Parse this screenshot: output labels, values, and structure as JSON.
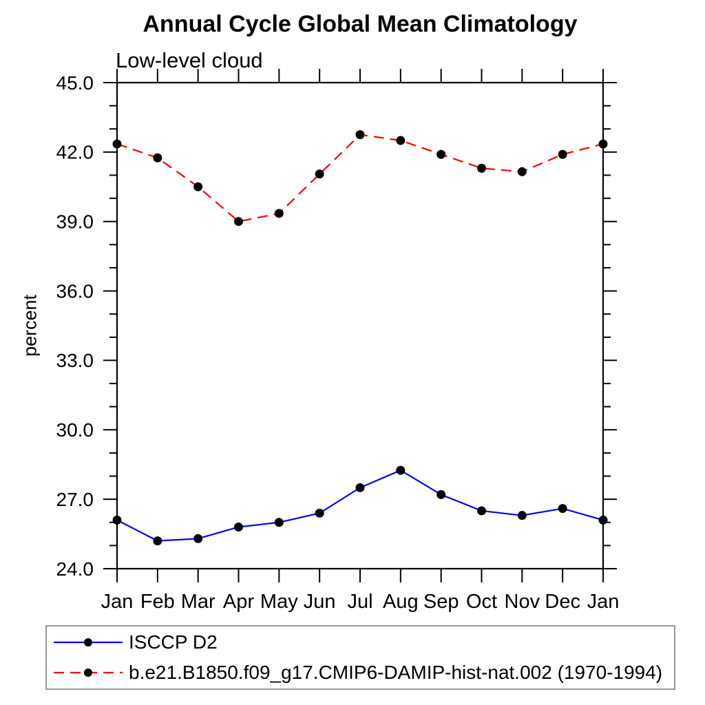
{
  "page": {
    "background": "#ffffff"
  },
  "header": {
    "title": "Annual Cycle Global Mean Climatology",
    "subtitle": "Low-level cloud"
  },
  "chart_data": {
    "type": "line",
    "title": "Annual Cycle Global Mean Climatology",
    "subtitle": "Low-level cloud",
    "xlabel": "",
    "ylabel": "percent",
    "x_categories": [
      "Jan",
      "Feb",
      "Mar",
      "Apr",
      "May",
      "Jun",
      "Jul",
      "Aug",
      "Sep",
      "Oct",
      "Nov",
      "Dec",
      "Jan"
    ],
    "ylim": [
      24.0,
      45.0
    ],
    "y_major_tick_labels": [
      "24.0",
      "27.0",
      "30.0",
      "33.0",
      "36.0",
      "39.0",
      "42.0",
      "45.0"
    ],
    "y_major_tick_step": 3.0,
    "y_minor_tick_step": 1.0,
    "grid": false,
    "frame": "box-with-outward-ticks",
    "legend_position": "bottom-left-box",
    "axis_color": "#000000",
    "marker_radius_px": 6.5,
    "series": [
      {
        "name": "ISCCP D2",
        "color": "#0000ff",
        "line_style": "solid",
        "marker": "filled-circle",
        "marker_color": "#000000",
        "values": [
          26.1,
          25.2,
          25.3,
          25.8,
          26.0,
          26.4,
          27.5,
          28.25,
          27.2,
          26.5,
          26.3,
          26.6,
          26.1
        ]
      },
      {
        "name": "b.e21.B1850.f09_g17.CMIP6-DAMIP-hist-nat.002 (1970-1994)",
        "color": "#ff0000",
        "line_style": "dashed",
        "marker": "filled-circle",
        "marker_color": "#000000",
        "values": [
          42.35,
          41.75,
          40.5,
          39.0,
          39.35,
          41.05,
          42.75,
          42.5,
          41.9,
          41.3,
          41.15,
          41.9,
          42.35
        ]
      }
    ]
  }
}
